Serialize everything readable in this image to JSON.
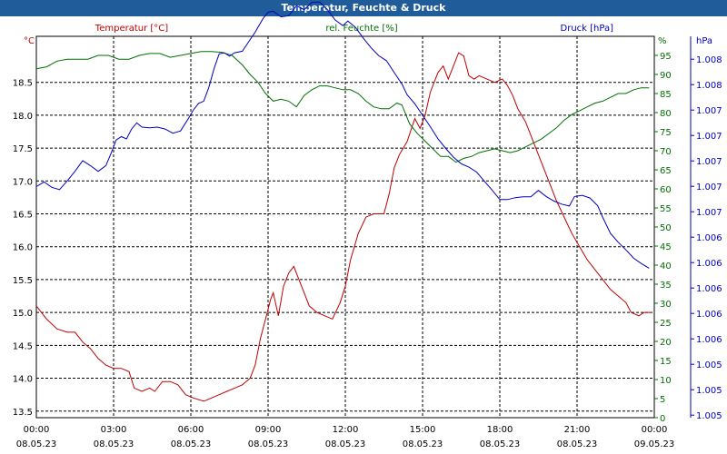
{
  "window": {
    "title": "Temperatur, Feuchte & Druck"
  },
  "chart_data": {
    "type": "line",
    "title": "Temperatur, Feuchte & Druck",
    "grid": true,
    "colors": {
      "temperature": "#c00000",
      "humidity": "#007000",
      "pressure": "#0000c0"
    },
    "x_ticks": [
      {
        "time": "00:00",
        "date": "08.05.23"
      },
      {
        "time": "03:00",
        "date": "08.05.23"
      },
      {
        "time": "06:00",
        "date": "08.05.23"
      },
      {
        "time": "09:00",
        "date": "08.05.23"
      },
      {
        "time": "12:00",
        "date": "08.05.23"
      },
      {
        "time": "15:00",
        "date": "08.05.23"
      },
      {
        "time": "18:00",
        "date": "08.05.23"
      },
      {
        "time": "21:00",
        "date": "08.05.23"
      },
      {
        "time": "00:00",
        "date": "09.05.23"
      }
    ],
    "x_unit": "hours",
    "x_range": [
      0,
      24
    ],
    "axes": {
      "temperature": {
        "label": "Temperatur [°C]",
        "unit": "°C",
        "range": [
          13.4,
          19.2
        ],
        "ticks": [
          "13.5",
          "14.0",
          "14.5",
          "15.0",
          "15.5",
          "16.0",
          "16.5",
          "17.0",
          "17.5",
          "18.0",
          "18.5"
        ]
      },
      "humidity": {
        "label": "rel. Feuchte [%]",
        "unit": "%",
        "range": [
          0,
          100
        ],
        "ticks": [
          "0",
          "5",
          "10",
          "15",
          "20",
          "25",
          "30",
          "35",
          "40",
          "45",
          "50",
          "55",
          "60",
          "65",
          "70",
          "75",
          "80",
          "85",
          "90",
          "95"
        ]
      },
      "pressure": {
        "label": "Druck [hPa]",
        "unit": "hPa",
        "ticks": [
          "1.005",
          "1.005",
          "1.005",
          "1.006",
          "1.006",
          "1.006",
          "1.006",
          "1.006",
          "1.007",
          "1.007",
          "1.007",
          "1.007",
          "1.007",
          "1.008",
          "1.008"
        ]
      }
    },
    "series": [
      {
        "name": "Temperatur [°C]",
        "axis": "temperature",
        "points": [
          [
            0,
            15.1
          ],
          [
            0.4,
            14.9
          ],
          [
            0.8,
            14.75
          ],
          [
            1.2,
            14.7
          ],
          [
            1.5,
            14.7
          ],
          [
            1.8,
            14.55
          ],
          [
            2.1,
            14.45
          ],
          [
            2.4,
            14.3
          ],
          [
            2.7,
            14.2
          ],
          [
            3.0,
            14.15
          ],
          [
            3.3,
            14.15
          ],
          [
            3.6,
            14.1
          ],
          [
            3.8,
            13.85
          ],
          [
            4.1,
            13.8
          ],
          [
            4.4,
            13.85
          ],
          [
            4.6,
            13.8
          ],
          [
            4.9,
            13.95
          ],
          [
            5.2,
            13.95
          ],
          [
            5.5,
            13.9
          ],
          [
            5.8,
            13.75
          ],
          [
            6.1,
            13.7
          ],
          [
            6.5,
            13.65
          ],
          [
            6.8,
            13.7
          ],
          [
            7.1,
            13.75
          ],
          [
            7.4,
            13.8
          ],
          [
            7.7,
            13.85
          ],
          [
            8.0,
            13.9
          ],
          [
            8.3,
            14.0
          ],
          [
            8.5,
            14.2
          ],
          [
            8.7,
            14.6
          ],
          [
            8.9,
            14.9
          ],
          [
            9.1,
            15.2
          ],
          [
            9.2,
            15.3
          ],
          [
            9.4,
            14.95
          ],
          [
            9.6,
            15.4
          ],
          [
            9.8,
            15.6
          ],
          [
            10.0,
            15.7
          ],
          [
            10.2,
            15.5
          ],
          [
            10.4,
            15.3
          ],
          [
            10.6,
            15.1
          ],
          [
            10.9,
            15.0
          ],
          [
            11.2,
            14.95
          ],
          [
            11.5,
            14.9
          ],
          [
            11.8,
            15.15
          ],
          [
            12.0,
            15.4
          ],
          [
            12.2,
            15.8
          ],
          [
            12.5,
            16.2
          ],
          [
            12.8,
            16.45
          ],
          [
            13.1,
            16.5
          ],
          [
            13.3,
            16.5
          ],
          [
            13.5,
            16.5
          ],
          [
            13.7,
            16.8
          ],
          [
            13.9,
            17.2
          ],
          [
            14.1,
            17.4
          ],
          [
            14.4,
            17.6
          ],
          [
            14.7,
            17.95
          ],
          [
            14.9,
            17.8
          ],
          [
            15.1,
            18.0
          ],
          [
            15.3,
            18.35
          ],
          [
            15.6,
            18.65
          ],
          [
            15.8,
            18.75
          ],
          [
            16.0,
            18.55
          ],
          [
            16.2,
            18.75
          ],
          [
            16.4,
            18.95
          ],
          [
            16.6,
            18.9
          ],
          [
            16.8,
            18.6
          ],
          [
            17.0,
            18.55
          ],
          [
            17.2,
            18.6
          ],
          [
            17.5,
            18.55
          ],
          [
            17.8,
            18.5
          ],
          [
            18.1,
            18.55
          ],
          [
            18.3,
            18.45
          ],
          [
            18.5,
            18.3
          ],
          [
            18.7,
            18.1
          ],
          [
            19.0,
            17.9
          ],
          [
            19.3,
            17.6
          ],
          [
            19.6,
            17.3
          ],
          [
            19.9,
            17.0
          ],
          [
            20.2,
            16.7
          ],
          [
            20.5,
            16.45
          ],
          [
            20.8,
            16.2
          ],
          [
            21.1,
            16.0
          ],
          [
            21.4,
            15.8
          ],
          [
            21.7,
            15.65
          ],
          [
            22.0,
            15.5
          ],
          [
            22.3,
            15.35
          ],
          [
            22.6,
            15.25
          ],
          [
            22.9,
            15.15
          ],
          [
            23.1,
            15.0
          ],
          [
            23.4,
            14.95
          ],
          [
            23.6,
            15.0
          ],
          [
            23.9,
            15.0
          ]
        ]
      },
      {
        "name": "rel. Feuchte [%]",
        "axis": "humidity",
        "points": [
          [
            0,
            91.5
          ],
          [
            0.4,
            92
          ],
          [
            0.8,
            93.5
          ],
          [
            1.2,
            94
          ],
          [
            1.6,
            94
          ],
          [
            2.0,
            94
          ],
          [
            2.4,
            95
          ],
          [
            2.8,
            95
          ],
          [
            3.2,
            94
          ],
          [
            3.6,
            94
          ],
          [
            4.0,
            95
          ],
          [
            4.4,
            95.5
          ],
          [
            4.8,
            95.5
          ],
          [
            5.2,
            94.5
          ],
          [
            5.6,
            95
          ],
          [
            6.0,
            95.5
          ],
          [
            6.4,
            96
          ],
          [
            6.8,
            96
          ],
          [
            7.2,
            95.8
          ],
          [
            7.6,
            95
          ],
          [
            8.0,
            92.5
          ],
          [
            8.3,
            90
          ],
          [
            8.6,
            88
          ],
          [
            8.9,
            85
          ],
          [
            9.2,
            83
          ],
          [
            9.5,
            83.5
          ],
          [
            9.8,
            83
          ],
          [
            10.1,
            81.5
          ],
          [
            10.4,
            84.5
          ],
          [
            10.7,
            86
          ],
          [
            11.0,
            87
          ],
          [
            11.3,
            87
          ],
          [
            11.6,
            86.5
          ],
          [
            11.9,
            86
          ],
          [
            12.2,
            86
          ],
          [
            12.5,
            85
          ],
          [
            12.8,
            83
          ],
          [
            13.1,
            81.5
          ],
          [
            13.4,
            81
          ],
          [
            13.7,
            81
          ],
          [
            14.0,
            82.5
          ],
          [
            14.2,
            82
          ],
          [
            14.5,
            77
          ],
          [
            14.8,
            74.5
          ],
          [
            15.1,
            72.5
          ],
          [
            15.4,
            70.5
          ],
          [
            15.7,
            68.5
          ],
          [
            16.0,
            68.5
          ],
          [
            16.3,
            67
          ],
          [
            16.6,
            68
          ],
          [
            16.9,
            68.5
          ],
          [
            17.2,
            69.5
          ],
          [
            17.5,
            70
          ],
          [
            17.8,
            70.5
          ],
          [
            18.1,
            70
          ],
          [
            18.4,
            69.5
          ],
          [
            18.7,
            70
          ],
          [
            19.0,
            71
          ],
          [
            19.3,
            72
          ],
          [
            19.6,
            73
          ],
          [
            19.9,
            74.5
          ],
          [
            20.2,
            76
          ],
          [
            20.5,
            78
          ],
          [
            20.8,
            79.5
          ],
          [
            21.1,
            80.5
          ],
          [
            21.4,
            81.5
          ],
          [
            21.7,
            82.5
          ],
          [
            22.0,
            83
          ],
          [
            22.3,
            84
          ],
          [
            22.6,
            85
          ],
          [
            22.9,
            85
          ],
          [
            23.2,
            86
          ],
          [
            23.5,
            86.5
          ],
          [
            23.8,
            86.5
          ]
        ]
      },
      {
        "name": "Druck [hPa]",
        "axis": "pressure",
        "points": [
          [
            0,
            0.606
          ],
          [
            0.3,
            0.618
          ],
          [
            0.6,
            0.604
          ],
          [
            0.9,
            0.598
          ],
          [
            1.2,
            0.621
          ],
          [
            1.5,
            0.646
          ],
          [
            1.8,
            0.674
          ],
          [
            2.1,
            0.661
          ],
          [
            2.4,
            0.646
          ],
          [
            2.7,
            0.661
          ],
          [
            2.9,
            0.693
          ],
          [
            3.1,
            0.728
          ],
          [
            3.3,
            0.737
          ],
          [
            3.5,
            0.731
          ],
          [
            3.7,
            0.757
          ],
          [
            3.9,
            0.773
          ],
          [
            4.1,
            0.762
          ],
          [
            4.4,
            0.76
          ],
          [
            4.7,
            0.762
          ],
          [
            5.0,
            0.757
          ],
          [
            5.3,
            0.746
          ],
          [
            5.6,
            0.752
          ],
          [
            5.9,
            0.784
          ],
          [
            6.1,
            0.807
          ],
          [
            6.3,
            0.824
          ],
          [
            6.5,
            0.83
          ],
          [
            6.7,
            0.866
          ],
          [
            6.9,
            0.915
          ],
          [
            7.1,
            0.954
          ],
          [
            7.3,
            0.957
          ],
          [
            7.5,
            0.948
          ],
          [
            7.7,
            0.957
          ],
          [
            8.0,
            0.961
          ],
          [
            8.2,
            0.981
          ],
          [
            8.5,
            1.011
          ],
          [
            8.8,
            1.046
          ],
          [
            9.0,
            1.063
          ],
          [
            9.2,
            1.066
          ],
          [
            9.5,
            1.051
          ],
          [
            9.8,
            1.054
          ],
          [
            10.1,
            1.08
          ],
          [
            10.4,
            1.07
          ],
          [
            10.7,
            1.089
          ],
          [
            11.0,
            1.09
          ],
          [
            11.3,
            1.07
          ],
          [
            11.6,
            1.043
          ],
          [
            11.9,
            1.028
          ],
          [
            12.1,
            1.04
          ],
          [
            12.4,
            1.023
          ],
          [
            12.7,
            0.995
          ],
          [
            13.0,
            0.97
          ],
          [
            13.3,
            0.949
          ],
          [
            13.6,
            0.936
          ],
          [
            13.9,
            0.905
          ],
          [
            14.2,
            0.875
          ],
          [
            14.4,
            0.847
          ],
          [
            14.7,
            0.823
          ],
          [
            15.0,
            0.793
          ],
          [
            15.3,
            0.763
          ],
          [
            15.6,
            0.731
          ],
          [
            15.9,
            0.706
          ],
          [
            16.2,
            0.683
          ],
          [
            16.5,
            0.666
          ],
          [
            16.8,
            0.657
          ],
          [
            17.1,
            0.644
          ],
          [
            17.4,
            0.62
          ],
          [
            17.7,
            0.597
          ],
          [
            18.0,
            0.572
          ],
          [
            18.3,
            0.572
          ],
          [
            18.6,
            0.577
          ],
          [
            18.9,
            0.579
          ],
          [
            19.2,
            0.579
          ],
          [
            19.5,
            0.596
          ],
          [
            19.8,
            0.58
          ],
          [
            20.1,
            0.568
          ],
          [
            20.4,
            0.56
          ],
          [
            20.7,
            0.555
          ],
          [
            20.9,
            0.58
          ],
          [
            21.2,
            0.583
          ],
          [
            21.5,
            0.576
          ],
          [
            21.8,
            0.556
          ],
          [
            22.0,
            0.525
          ],
          [
            22.3,
            0.483
          ],
          [
            22.6,
            0.46
          ],
          [
            22.9,
            0.44
          ],
          [
            23.2,
            0.418
          ],
          [
            23.5,
            0.404
          ],
          [
            23.8,
            0.392
          ]
        ]
      }
    ]
  }
}
